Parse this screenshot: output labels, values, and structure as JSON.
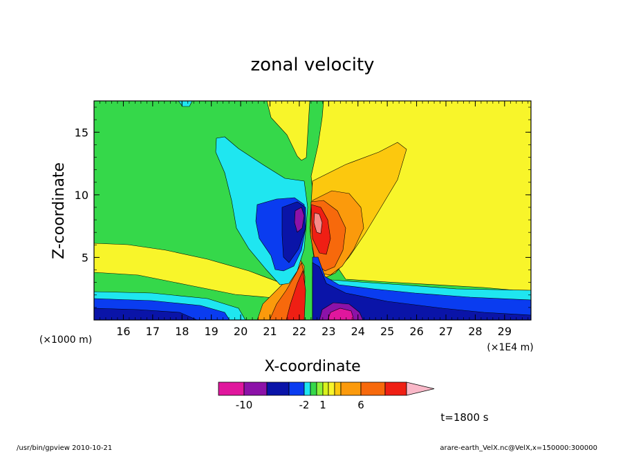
{
  "chart_data": {
    "type": "heatmap",
    "title": "zonal velocity",
    "xlabel": "X-coordinate",
    "ylabel": "Z-coordinate",
    "x_unit_label": "(×1E4 m)",
    "z_unit_label": "(×1000 m)",
    "x_ticks": [
      16,
      17,
      18,
      19,
      20,
      21,
      22,
      23,
      24,
      25,
      26,
      27,
      28,
      29
    ],
    "z_ticks": [
      5,
      10,
      15
    ],
    "xlim": [
      15.0,
      29.9
    ],
    "zlim": [
      0.0,
      17.5
    ],
    "colorbar_labels": [
      {
        "text": "-10",
        "value": -10
      },
      {
        "text": "-2",
        "value": -2
      },
      {
        "text": "1",
        "value": 1
      },
      {
        "text": "6",
        "value": 6
      }
    ],
    "colorbar_levels": [
      -12,
      -10,
      -8,
      -6,
      -4,
      -2,
      -1,
      0,
      1,
      2,
      3,
      4,
      6,
      8,
      10
    ],
    "color_scale": [
      "#e0179d",
      "#8c12a8",
      "#0a14a8",
      "#0a3cf0",
      "#2ab0f5",
      "#1fe6f0",
      "#35d84a",
      "#8ef23a",
      "#d9f21c",
      "#f8f52a",
      "#fcc80e",
      "#fb9a0c",
      "#f7690c",
      "#ef1f14",
      "#f78a88",
      "#f9b8c8"
    ],
    "time_label": "t=1800 s",
    "footer_left": "/usr/bin/gpview   2010-10-21",
    "footer_right": "arare-earth_VelX.nc@VelX,x=150000:300000"
  }
}
